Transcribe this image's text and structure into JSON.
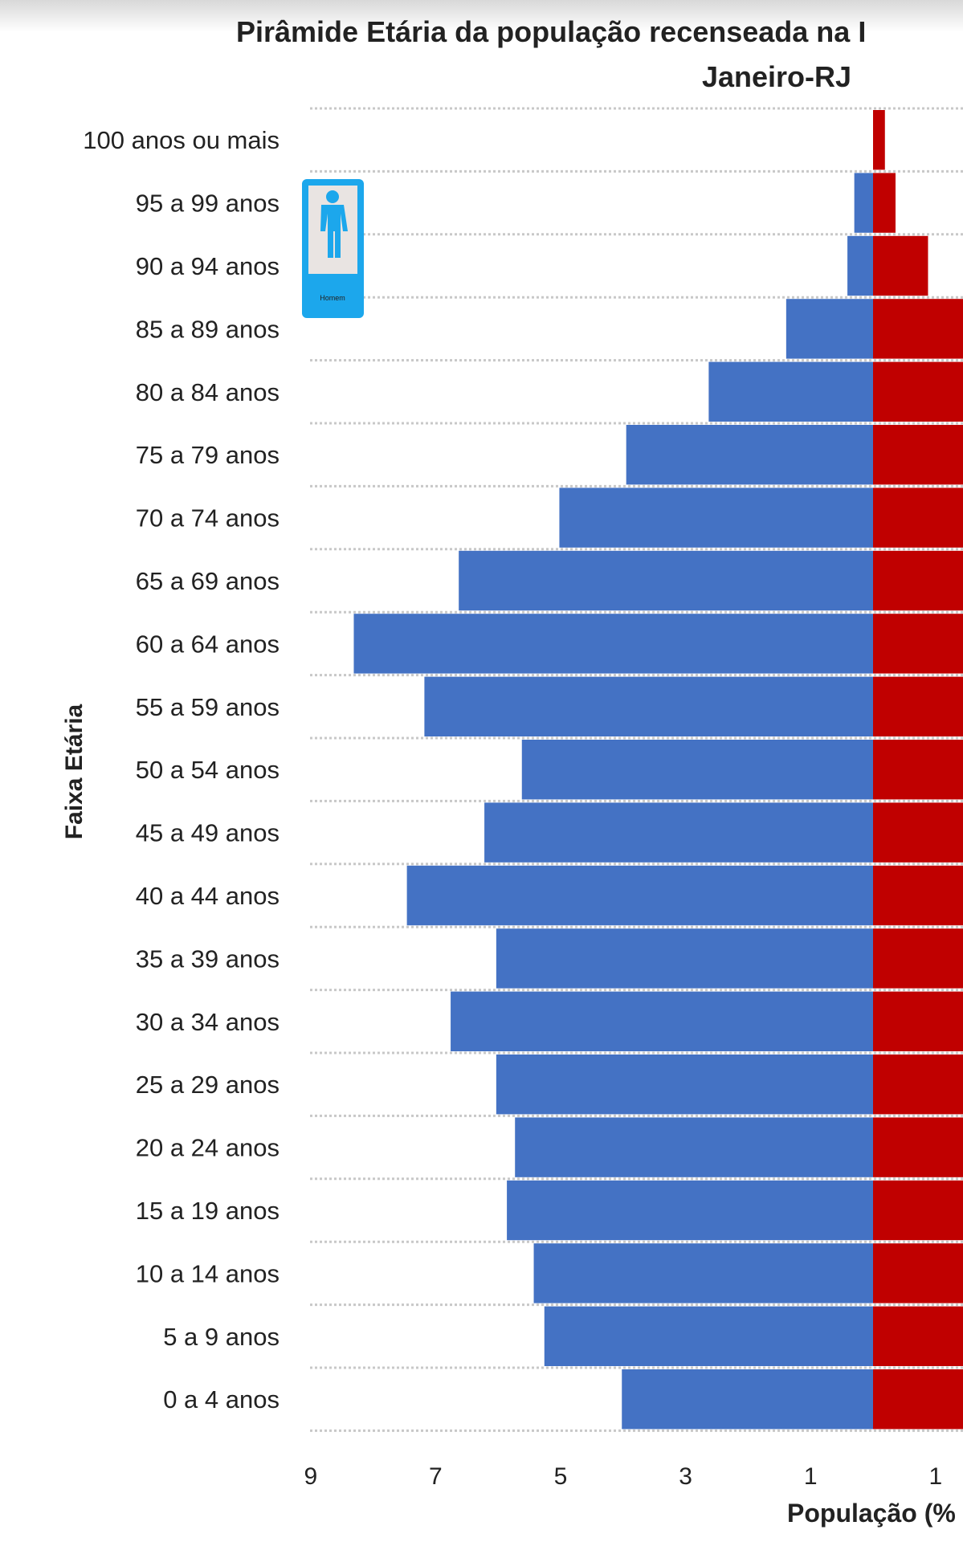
{
  "chart_data": {
    "type": "bar",
    "orientation": "horizontal-pyramid",
    "title": "Pirâmide Etária da população recenseada na I",
    "subtitle": "Janeiro-RJ",
    "xlabel": "População (%",
    "ylabel": "Faixa Etária",
    "categories": [
      "100 anos ou mais",
      "95 a 99 anos",
      "90 a 94 anos",
      "85 a 89 anos",
      "80 a 84 anos",
      "75 a 79 anos",
      "70 a 74 anos",
      "65 a 69 anos",
      "60 a 64 anos",
      "55 a 59 anos",
      "50 a 54 anos",
      "45 a 49 anos",
      "40 a 44 anos",
      "35 a 39 anos",
      "30 a 34 anos",
      "25 a 29 anos",
      "20 a 24 anos",
      "15 a 19 anos",
      "10 a 14 anos",
      "5 a 9 anos",
      "0 a 4 anos"
    ],
    "series": [
      {
        "side": "left",
        "color": "#4472C4",
        "values": [
          0.0,
          0.3,
          0.41,
          1.39,
          2.63,
          3.95,
          5.02,
          6.63,
          8.31,
          7.18,
          5.62,
          6.22,
          7.46,
          6.03,
          6.76,
          6.03,
          5.73,
          5.86,
          5.43,
          5.26,
          4.02
        ]
      },
      {
        "side": "right",
        "color": "#C00000",
        "values": [
          0.19,
          0.36,
          0.88,
          null,
          null,
          null,
          null,
          null,
          null,
          null,
          null,
          null,
          null,
          null,
          null,
          null,
          null,
          null,
          null,
          null,
          null
        ]
      }
    ],
    "xticks": [
      "9",
      "7",
      "5",
      "3",
      "1",
      "1"
    ],
    "xtick_values": [
      -9,
      -7,
      -5,
      -3,
      -1,
      1
    ],
    "xlim": [
      -9.3,
      1.45
    ],
    "grid": "horizontal dashed",
    "legend": {
      "icon": "male-figure-icon",
      "label": "Homem",
      "color": "#1CA7EC",
      "placement": "left"
    }
  }
}
